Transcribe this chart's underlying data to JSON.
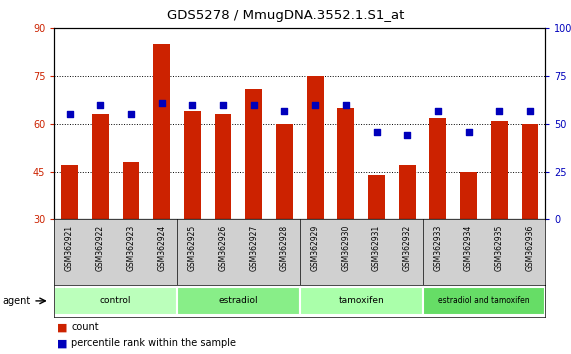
{
  "title": "GDS5278 / MmugDNA.3552.1.S1_at",
  "samples": [
    "GSM362921",
    "GSM362922",
    "GSM362923",
    "GSM362924",
    "GSM362925",
    "GSM362926",
    "GSM362927",
    "GSM362928",
    "GSM362929",
    "GSM362930",
    "GSM362931",
    "GSM362932",
    "GSM362933",
    "GSM362934",
    "GSM362935",
    "GSM362936"
  ],
  "counts": [
    47,
    63,
    48,
    85,
    64,
    63,
    71,
    60,
    75,
    65,
    44,
    47,
    62,
    45,
    61,
    60
  ],
  "percentile_ranks": [
    55,
    60,
    55,
    61,
    60,
    60,
    60,
    57,
    60,
    60,
    46,
    44,
    57,
    46,
    57,
    57
  ],
  "groups": [
    {
      "label": "control",
      "start": 0,
      "end": 4
    },
    {
      "label": "estradiol",
      "start": 4,
      "end": 8
    },
    {
      "label": "tamoxifen",
      "start": 8,
      "end": 12
    },
    {
      "label": "estradiol and tamoxifen",
      "start": 12,
      "end": 16
    }
  ],
  "group_colors": [
    "#bbffbb",
    "#88ee88",
    "#aaffaa",
    "#66dd66"
  ],
  "ylim_left": [
    30,
    90
  ],
  "ylim_right": [
    0,
    100
  ],
  "yticks_left": [
    30,
    45,
    60,
    75,
    90
  ],
  "yticks_right": [
    0,
    25,
    50,
    75,
    100
  ],
  "bar_color": "#cc2200",
  "dot_color": "#0000bb",
  "bg_color": "#ffffff",
  "xlabel_bg": "#d0d0d0",
  "left_tick_color": "#cc2200",
  "right_tick_color": "#0000bb",
  "agent_label": "agent"
}
